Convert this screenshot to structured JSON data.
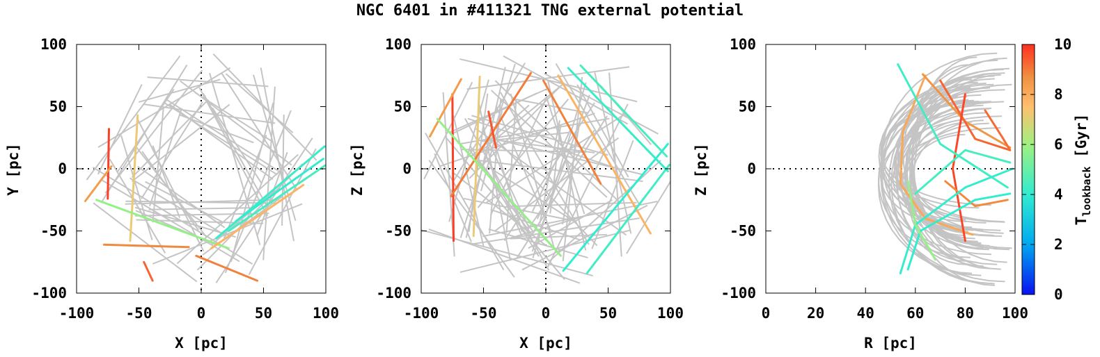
{
  "title": "NGC 6401 in #411321 TNG external potential",
  "chart_data": [
    {
      "type": "line",
      "panel": "X-Y projection",
      "xlabel": "X [pc]",
      "ylabel": "Y [pc]",
      "xlim": [
        -100,
        100
      ],
      "ylim": [
        -100,
        100
      ],
      "xticks": [
        "-100",
        "-50",
        "0",
        "50",
        "100"
      ],
      "yticks": [
        "-100",
        "-50",
        "0",
        "50",
        "100"
      ],
      "zero_lines": "dotted",
      "background_tracks": "grey",
      "series": [
        {
          "t_lookback_gyr": 9.8,
          "x": [
            -75,
            -74
          ],
          "y": [
            -24,
            32
          ]
        },
        {
          "t_lookback_gyr": 8.4,
          "x": [
            -93,
            -72
          ],
          "y": [
            -26,
            2
          ]
        },
        {
          "t_lookback_gyr": 7.2,
          "x": [
            -57,
            -51
          ],
          "y": [
            -58,
            43
          ]
        },
        {
          "t_lookback_gyr": 5.8,
          "x": [
            -84,
            22
          ],
          "y": [
            -25,
            -64
          ]
        },
        {
          "t_lookback_gyr": 8.8,
          "x": [
            -78,
            -10
          ],
          "y": [
            -61,
            -63
          ]
        },
        {
          "t_lookback_gyr": 9.3,
          "x": [
            -46,
            -39
          ],
          "y": [
            -75,
            -90
          ]
        },
        {
          "t_lookback_gyr": 8.9,
          "x": [
            -4,
            45
          ],
          "y": [
            -70,
            -90
          ]
        },
        {
          "t_lookback_gyr": 4.2,
          "x": [
            12,
            99
          ],
          "y": [
            -56,
            18
          ]
        },
        {
          "t_lookback_gyr": 4.0,
          "x": [
            28,
            98
          ],
          "y": [
            -42,
            8
          ]
        },
        {
          "t_lookback_gyr": 4.4,
          "x": [
            22,
            100
          ],
          "y": [
            -50,
            3
          ]
        },
        {
          "t_lookback_gyr": 7.8,
          "x": [
            8,
            82
          ],
          "y": [
            -64,
            -13
          ]
        }
      ]
    },
    {
      "type": "line",
      "panel": "X-Z projection",
      "xlabel": "X [pc]",
      "ylabel": "Z [pc]",
      "xlim": [
        -100,
        100
      ],
      "ylim": [
        -100,
        100
      ],
      "xticks": [
        "-100",
        "-50",
        "0",
        "50",
        "100"
      ],
      "yticks": [
        "-100",
        "-50",
        "0",
        "50",
        "100"
      ],
      "zero_lines": "dotted",
      "background_tracks": "grey",
      "series": [
        {
          "t_lookback_gyr": 9.8,
          "x": [
            -75,
            -74
          ],
          "y": [
            60,
            -58
          ]
        },
        {
          "t_lookback_gyr": 8.4,
          "x": [
            -93,
            -68
          ],
          "y": [
            26,
            72
          ]
        },
        {
          "t_lookback_gyr": 7.2,
          "x": [
            -58,
            -53
          ],
          "y": [
            -54,
            74
          ]
        },
        {
          "t_lookback_gyr": 9.0,
          "x": [
            -76,
            -12
          ],
          "y": [
            -22,
            77
          ]
        },
        {
          "t_lookback_gyr": 9.5,
          "x": [
            -46,
            -40
          ],
          "y": [
            46,
            17
          ]
        },
        {
          "t_lookback_gyr": 5.8,
          "x": [
            -87,
            12
          ],
          "y": [
            40,
            -70
          ]
        },
        {
          "t_lookback_gyr": 8.9,
          "x": [
            -2,
            44
          ],
          "y": [
            71,
            -12
          ]
        },
        {
          "t_lookback_gyr": 7.8,
          "x": [
            10,
            84
          ],
          "y": [
            75,
            -52
          ]
        },
        {
          "t_lookback_gyr": 4.2,
          "x": [
            18,
            98
          ],
          "y": [
            81,
            -2
          ]
        },
        {
          "t_lookback_gyr": 4.4,
          "x": [
            28,
            97
          ],
          "y": [
            83,
            10
          ]
        },
        {
          "t_lookback_gyr": 4.0,
          "x": [
            14,
            98
          ],
          "y": [
            -82,
            20
          ]
        },
        {
          "t_lookback_gyr": 4.3,
          "x": [
            33,
            99
          ],
          "y": [
            -84,
            3
          ]
        }
      ]
    },
    {
      "type": "line",
      "panel": "R-Z projection",
      "xlabel": "R [pc]",
      "ylabel": "Z [pc]",
      "xlim": [
        0,
        100
      ],
      "ylim": [
        -100,
        100
      ],
      "xticks": [
        "0",
        "20",
        "40",
        "60",
        "80",
        "100"
      ],
      "yticks": [
        "-100",
        "-50",
        "0",
        "50",
        "100"
      ],
      "zero_lines": "dotted",
      "background_tracks": "grey",
      "series": [
        {
          "t_lookback_gyr": 8.1,
          "x": [
            64,
            55,
            54,
            64,
            83
          ],
          "y": [
            75,
            30,
            -12,
            -40,
            -53
          ]
        },
        {
          "t_lookback_gyr": 8.6,
          "x": [
            63,
            80,
            98
          ],
          "y": [
            76,
            38,
            17
          ]
        },
        {
          "t_lookback_gyr": 9.3,
          "x": [
            70,
            84,
            98
          ],
          "y": [
            71,
            24,
            15
          ]
        },
        {
          "t_lookback_gyr": 9.7,
          "x": [
            80,
            75,
            80
          ],
          "y": [
            60,
            0,
            -58
          ]
        },
        {
          "t_lookback_gyr": 9.2,
          "x": [
            88,
            95,
            98
          ],
          "y": [
            47,
            25,
            15
          ]
        },
        {
          "t_lookback_gyr": 8.8,
          "x": [
            72,
            84,
            97
          ],
          "y": [
            -10,
            -30,
            -25
          ]
        },
        {
          "t_lookback_gyr": 4.3,
          "x": [
            53,
            70,
            97
          ],
          "y": [
            84,
            20,
            -15
          ]
        },
        {
          "t_lookback_gyr": 4.1,
          "x": [
            54,
            60,
            80,
            99
          ],
          "y": [
            -84,
            -45,
            -15,
            0
          ]
        },
        {
          "t_lookback_gyr": 4.0,
          "x": [
            57,
            62,
            84,
            98
          ],
          "y": [
            -81,
            -50,
            -25,
            -20
          ]
        },
        {
          "t_lookback_gyr": 4.4,
          "x": [
            60,
            80,
            98
          ],
          "y": [
            -20,
            15,
            5
          ]
        },
        {
          "t_lookback_gyr": 5.8,
          "x": [
            57,
            60,
            68
          ],
          "y": [
            -10,
            -45,
            -73
          ]
        }
      ]
    }
  ],
  "colorbar": {
    "label_main": "T",
    "label_sub": "lookback",
    "label_unit": " [Gyr]",
    "range": [
      0,
      10
    ],
    "ticks": [
      "0",
      "2",
      "4",
      "6",
      "8",
      "10"
    ],
    "colors": [
      "#0a10f0",
      "#00a8f0",
      "#30ecd0",
      "#a0f080",
      "#ffc070",
      "#f09040",
      "#ff3020"
    ]
  }
}
